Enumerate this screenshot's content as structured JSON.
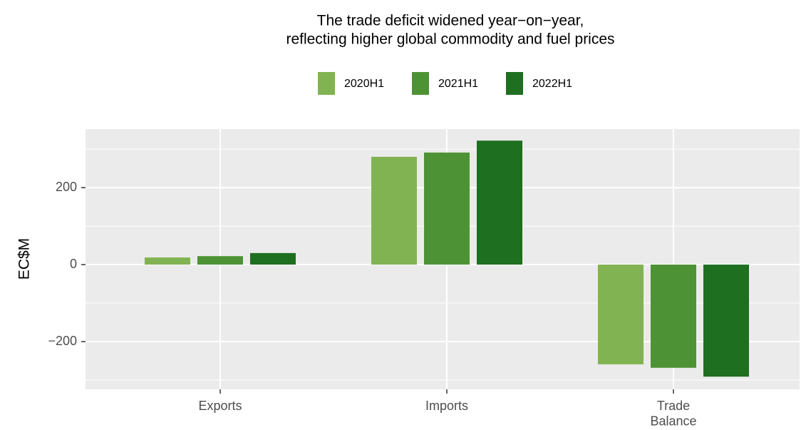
{
  "chart_data": {
    "type": "bar",
    "title": [
      "The trade deficit widened year−on−year,",
      "reflecting higher global commodity and fuel prices"
    ],
    "y_label": "EC$M",
    "categories": [
      "Exports",
      "Imports",
      "Trade\nBalance"
    ],
    "series": [
      {
        "name": "2020H1",
        "color": "#82b352",
        "values": [
          18.5,
          280,
          -259
        ]
      },
      {
        "name": "2021H1",
        "color": "#4e9236",
        "values": [
          22,
          291,
          -268
        ]
      },
      {
        "name": "2022H1",
        "color": "#1e6f1f",
        "values": [
          30,
          322,
          -291
        ]
      }
    ],
    "ylim": [
      -324,
      352
    ],
    "yticks": [
      {
        "value": -200,
        "label": "−200"
      },
      0,
      200
    ],
    "grid": true,
    "legend": "top"
  }
}
